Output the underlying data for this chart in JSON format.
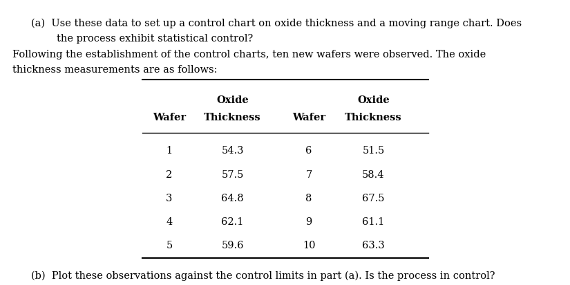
{
  "para_a_line1": "(a)  Use these data to set up a control chart on oxide thickness and a moving range chart. Does",
  "para_a_line2": "        the process exhibit statistical control?",
  "para_b_line1": "Following the establishment of the control charts, ten new wafers were observed. The oxide",
  "para_b_line2": "thickness measurements are as follows:",
  "wafers_left": [
    "1",
    "2",
    "3",
    "4",
    "5"
  ],
  "thickness_left": [
    "54.3",
    "57.5",
    "64.8",
    "62.1",
    "59.6"
  ],
  "wafers_right": [
    "6",
    "7",
    "8",
    "9",
    "10"
  ],
  "thickness_right": [
    "51.5",
    "58.4",
    "67.5",
    "61.1",
    "63.3"
  ],
  "part_b": "(b)  Plot these observations against the control limits in part (a). Is the process in control?",
  "bg_color": "#ffffff",
  "text_color": "#000000",
  "font_size": 10.5,
  "header_font_size": 10.5,
  "table_font_size": 10.5
}
